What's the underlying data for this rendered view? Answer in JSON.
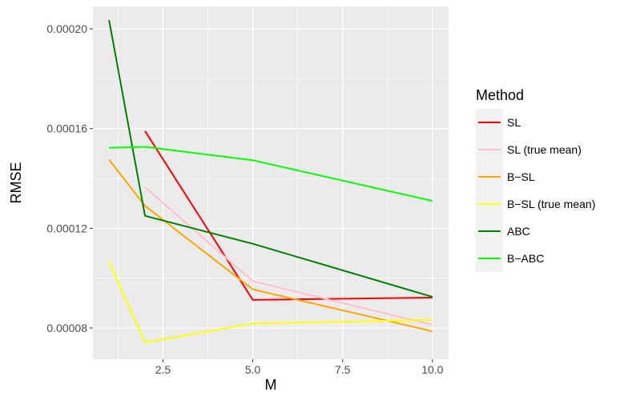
{
  "chart_data": {
    "type": "line",
    "xlabel": "M",
    "ylabel": "RMSE",
    "xlim": [
      0.55,
      10.45
    ],
    "ylim": [
      6.75e-05,
      0.000209
    ],
    "xticks": [
      2.5,
      5.0,
      7.5,
      10.0
    ],
    "xtick_labels": [
      "2.5",
      "5.0",
      "7.5",
      "10.0"
    ],
    "yticks": [
      8e-05,
      0.00012,
      0.00016,
      0.0002
    ],
    "ytick_labels": [
      "0.00008",
      "0.00012",
      "0.00016",
      "0.00020"
    ],
    "grid": true,
    "legend": {
      "title": "Method",
      "placement": "right"
    },
    "series": [
      {
        "name": "SL",
        "color": "#FF0000",
        "x": [
          2,
          5,
          10
        ],
        "y": [
          0.000159,
          9.13e-05,
          9.22e-05
        ]
      },
      {
        "name": "SL (true mean)",
        "color": "#FFC0CB",
        "x": [
          2,
          5,
          10
        ],
        "y": [
          0.0001365,
          9.88e-05,
          8.13e-05
        ]
      },
      {
        "name": "B−SL",
        "color": "#FFA500",
        "x": [
          1,
          2,
          5,
          10
        ],
        "y": [
          0.0001475,
          0.000129,
          9.55e-05,
          7.87e-05
        ]
      },
      {
        "name": "B−SL (true mean)",
        "color": "#FFFF00",
        "x": [
          1,
          2,
          5,
          10
        ],
        "y": [
          0.0001065,
          7.42e-05,
          8.18e-05,
          8.33e-05
        ]
      },
      {
        "name": "ABC",
        "color": "#008000",
        "x": [
          1,
          2,
          5,
          10
        ],
        "y": [
          0.0002035,
          0.000125,
          0.0001138,
          9.25e-05
        ]
      },
      {
        "name": "B−ABC",
        "color": "#00FF00",
        "x": [
          1,
          2,
          5,
          10
        ],
        "y": [
          0.0001523,
          0.0001527,
          0.0001473,
          0.000131
        ]
      }
    ]
  }
}
